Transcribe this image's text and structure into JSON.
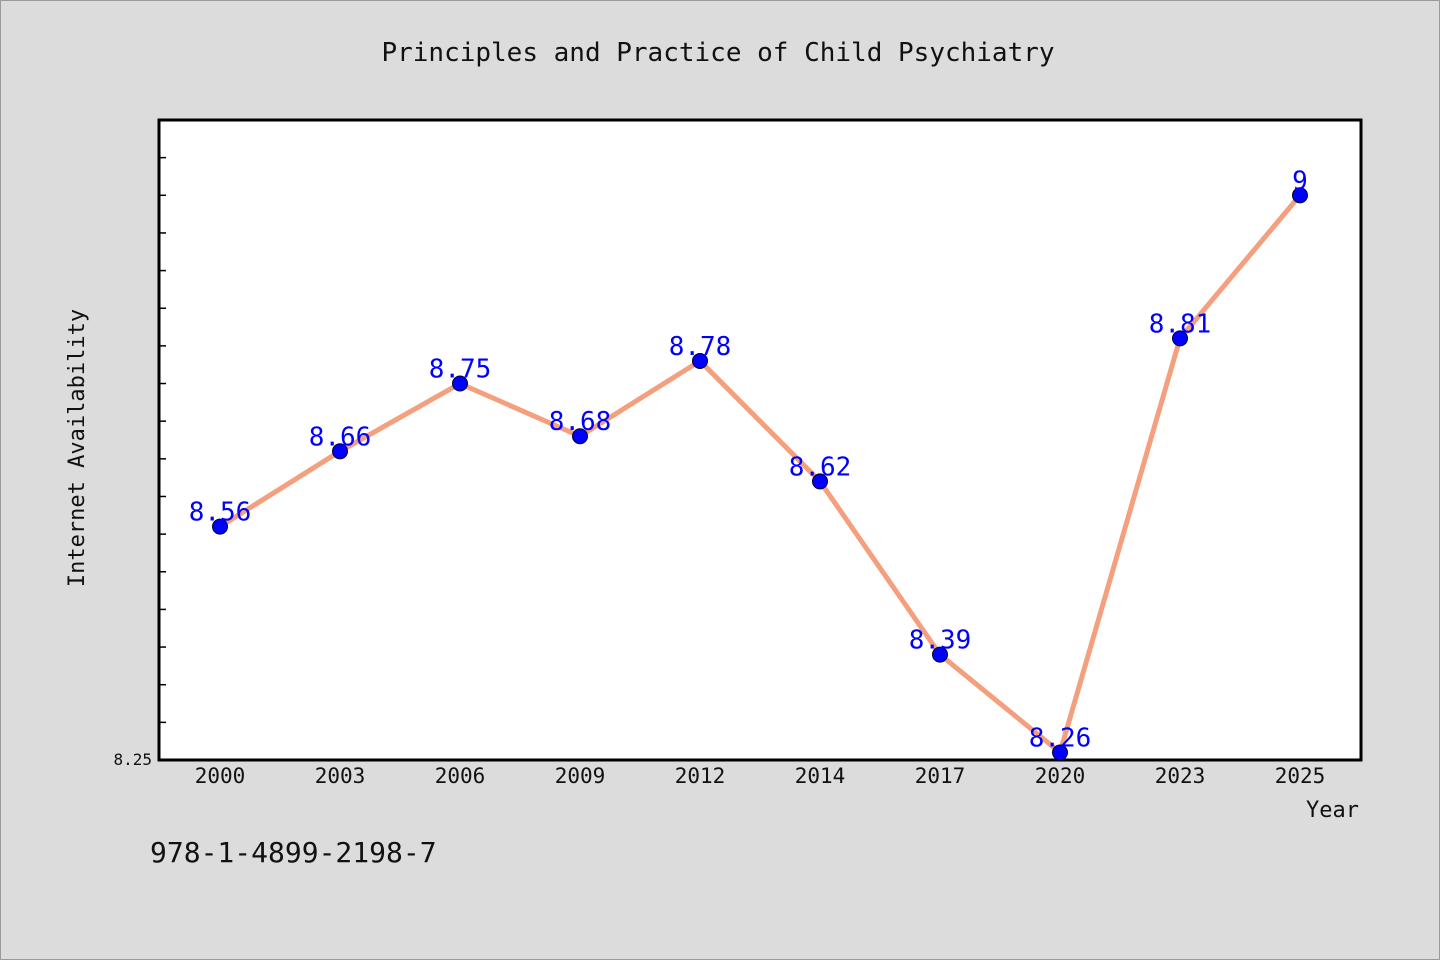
{
  "chart_data": {
    "type": "line",
    "title": "Principles and Practice of Child Psychiatry",
    "xlabel": "Year",
    "ylabel": "Internet Availability",
    "categories": [
      "2000",
      "2003",
      "2006",
      "2009",
      "2012",
      "2014",
      "2017",
      "2020",
      "2023",
      "2025"
    ],
    "series": [
      {
        "values": [
          8.56,
          8.66,
          8.75,
          8.68,
          8.78,
          8.62,
          8.39,
          8.26,
          8.81,
          9.0
        ],
        "labels": [
          "8.56",
          "8.66",
          "8.75",
          "8.68",
          "8.78",
          "8.62",
          "8.39",
          "8.26",
          "8.81",
          "9"
        ]
      }
    ],
    "ylim": [
      8.25,
      9.1
    ],
    "yticks_labeled": [
      "8.25"
    ],
    "ytick_min": 8.25,
    "ytick_minor_step": 0.05,
    "grid": false,
    "legend": "none",
    "colors": {
      "line": "#f4a07e",
      "marker": "#0000ff",
      "data_label": "#0000ff",
      "plot_bg": "#ffffff",
      "page_bg": "#dcdcdc"
    }
  },
  "footer": {
    "isbn": "978-1-4899-2198-7"
  }
}
